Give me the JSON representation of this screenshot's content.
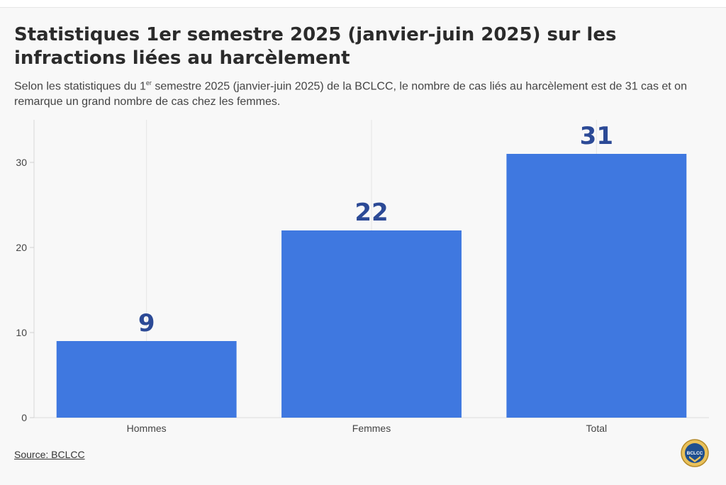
{
  "header": {
    "title": "Statistiques 1er semestre 2025 (janvier-juin 2025) sur les infractions liées au harcèlement",
    "subtitle_pre": "Selon les statistiques du 1",
    "subtitle_sup": "er",
    "subtitle_post": " semestre 2025 (janvier-juin 2025) de la BCLCC, le nombre de cas liés au harcèlement est de 31 cas et on remarque un grand nombre de cas chez les femmes."
  },
  "source": {
    "label": "Source: BCLCC"
  },
  "logo": {
    "text": "BCLCC"
  },
  "colors": {
    "bar": "#3f78e0",
    "data_label": "#2c4a96",
    "grid": "#e4e4e4",
    "tick": "#444444"
  },
  "chart_data": {
    "type": "bar",
    "categories": [
      "Hommes",
      "Femmes",
      "Total"
    ],
    "values": [
      9,
      22,
      31
    ],
    "title": "",
    "xlabel": "",
    "ylabel": "",
    "ylim": [
      0,
      35
    ],
    "yticks": [
      0,
      10,
      20,
      30
    ],
    "data_labels": [
      "9",
      "22",
      "31"
    ],
    "grid": true,
    "legend": "none"
  }
}
